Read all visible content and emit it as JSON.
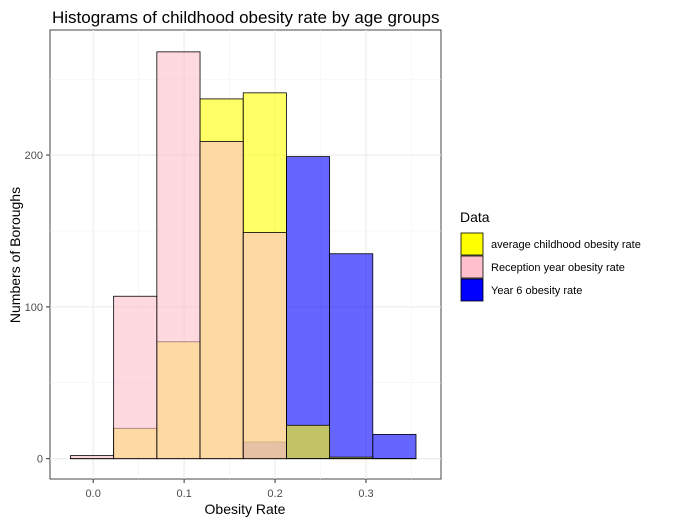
{
  "chart_data": {
    "type": "bar",
    "title": "Histograms of childhood obesity rate by age groups",
    "xlabel": "Obesity Rate",
    "ylabel": "Numbers of Boroughs",
    "xlim": [
      -0.0475,
      0.3825
    ],
    "ylim": [
      -13.4,
      282.4
    ],
    "x_ticks": [
      0.0,
      0.1,
      0.2,
      0.3
    ],
    "x_tick_labels": [
      "0.0",
      "0.1",
      "0.2",
      "0.3"
    ],
    "y_ticks": [
      0,
      100,
      200
    ],
    "y_tick_labels": [
      "0",
      "100",
      "200"
    ],
    "grid": true,
    "bins": [
      [
        -0.025,
        0.0225
      ],
      [
        0.0225,
        0.07
      ],
      [
        0.07,
        0.1175
      ],
      [
        0.1175,
        0.165
      ],
      [
        0.165,
        0.2125
      ],
      [
        0.2125,
        0.26
      ],
      [
        0.26,
        0.3075
      ],
      [
        0.3075,
        0.355
      ]
    ],
    "legend": {
      "title": "Data",
      "position": "right"
    },
    "series": [
      {
        "name": "Year 6 obesity rate",
        "color": "#0000FF",
        "values": [
          0,
          0,
          0,
          0,
          11,
          199,
          135,
          16
        ]
      },
      {
        "name": "average childhood obesity rate",
        "color": "#FFFF00",
        "values": [
          0,
          20,
          77,
          237,
          241,
          22,
          1,
          0
        ]
      },
      {
        "name": "Reception year obesity rate",
        "color": "#FFC0CB",
        "values": [
          2,
          107,
          268,
          209,
          149,
          0,
          0,
          0
        ]
      }
    ],
    "legend_order": [
      "average childhood obesity rate",
      "Reception year obesity rate",
      "Year 6 obesity rate"
    ]
  }
}
